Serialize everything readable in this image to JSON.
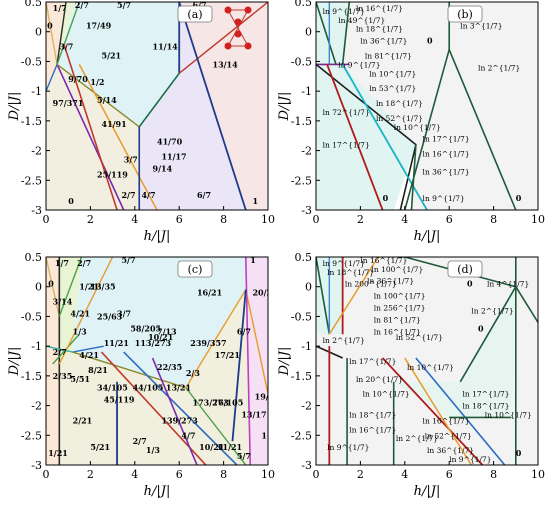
{
  "xlabel": "h/|J|",
  "ylabel": "D/|J|",
  "chart_data": [
    {
      "panel": "(a)",
      "type": "phase-diagram",
      "xlim": [
        0,
        10
      ],
      "ylim": [
        -3,
        0.5
      ],
      "xticks": [
        "0",
        "2",
        "4",
        "6",
        "8",
        "10"
      ],
      "yticks": [
        "0.5",
        "0",
        "-0.5",
        "-1",
        "-1.5",
        "-2",
        "-2.5",
        "-3"
      ],
      "region_labels": [
        "1/7",
        "2/7",
        "5/7",
        "6/7",
        "0",
        "17/49",
        "3/7",
        "5/21",
        "9/70",
        "1/2",
        "11/14",
        "13/14",
        "97/371",
        "5/14",
        "41/91",
        "41/70",
        "11/17",
        "25/119",
        "3/7",
        "9/14",
        "2/7",
        "4/7",
        "6/7",
        "0",
        "1"
      ]
    },
    {
      "panel": "(b)",
      "type": "phase-diagram",
      "xlim": [
        0,
        10
      ],
      "ylim": [
        -3,
        0.5
      ],
      "xticks": [
        "0",
        "2",
        "4",
        "6",
        "8",
        "10"
      ],
      "yticks": [
        "0.5",
        "0",
        "-0.5",
        "-1",
        "-1.5",
        "-2",
        "-2.5",
        "-3"
      ],
      "region_labels": [
        "ln 9^{1/7}",
        "ln 16^{1/7}",
        "ln 49^{1/7}",
        "ln 18^{1/7}",
        "ln 36^{1/7}",
        "ln 81^{1/7}",
        "ln 9^{1/7}",
        "ln 10^{1/7}",
        "ln 53^{1/7}",
        "ln 72^{1/7}",
        "ln 18^{1/7}",
        "ln 52^{1/7}",
        "ln 10^{1/7}",
        "ln 17^{1/7}",
        "ln 17^{1/7}",
        "ln 16^{1/7}",
        "ln 36^{1/7}",
        "ln 9^{1/7}",
        "ln 3^{1/7}",
        "ln 2^{1/7}",
        "0",
        "0",
        "0"
      ]
    },
    {
      "panel": "(c)",
      "type": "phase-diagram",
      "xlim": [
        0,
        10
      ],
      "ylim": [
        -3,
        0.5
      ],
      "xticks": [
        "0",
        "2",
        "4",
        "6",
        "8",
        "10"
      ],
      "yticks": [
        "0.5",
        "0",
        "-0.5",
        "-1",
        "-1.5",
        "-2",
        "-2.5",
        "-3"
      ],
      "region_labels": [
        "1/7",
        "2/7",
        "0",
        "1/21",
        "13/35",
        "3/14",
        "4/21",
        "25/63",
        "1/3",
        "3/7",
        "2/7",
        "58/205",
        "5/7",
        "16/21",
        "20/21",
        "1",
        "2/35",
        "5/51",
        "4/21",
        "8/21",
        "11/21",
        "113/273",
        "10/21",
        "7/13",
        "22/35",
        "239/357",
        "17/21",
        "6/7",
        "2/21",
        "34/105",
        "45/119",
        "44/105",
        "13/21",
        "2/3",
        "173/273",
        "76/105",
        "19/21",
        "13/17",
        "1/21",
        "5/21",
        "2/7",
        "1/3",
        "139/273",
        "4/7",
        "10/21",
        "11/21",
        "5/7",
        "16/21"
      ]
    },
    {
      "panel": "(d)",
      "type": "phase-diagram",
      "xlim": [
        0,
        10
      ],
      "ylim": [
        -3,
        0.5
      ],
      "xticks": [
        "0",
        "2",
        "4",
        "6",
        "8",
        "10"
      ],
      "yticks": [
        "0.5",
        "0",
        "-0.5",
        "-1",
        "-1.5",
        "-2",
        "-2.5",
        "-3"
      ],
      "region_labels": [
        "ln 9^{1/7}",
        "ln 16^{1/7}",
        "ln 18^{1/7}",
        "ln 100^{1/7}",
        "ln 200^{1/7}",
        "ln 36^{1/7}",
        "ln 100^{1/7}",
        "ln 256^{1/7}",
        "ln 81^{1/7}",
        "ln 16^{1/7}",
        "ln 2^{1/7}",
        "ln 4^{1/7}",
        "ln 2^{1/7}",
        "ln 52^{1/7}",
        "ln 17^{1/7}",
        "ln 10^{1/7}",
        "ln 20^{1/7}",
        "ln 10^{1/7}",
        "ln 17^{1/7}",
        "ln 18^{1/7}",
        "ln 10^{1/7}",
        "ln 18^{1/7}",
        "ln 16^{1/7}",
        "ln 16^{1/7}",
        "ln 2^{1/7}",
        "ln 52^{1/7}",
        "ln 36^{1/7}",
        "ln 9^{1/7}",
        "ln 9^{1/7}",
        "0",
        "0",
        "0"
      ]
    }
  ]
}
